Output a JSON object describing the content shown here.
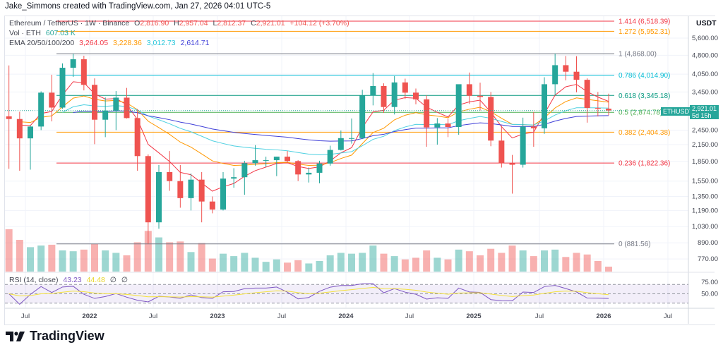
{
  "credit": "Jake_Simmons created with TradingView.com, Jan 27, 2026 04:01 UTC-5",
  "legend": {
    "symbol": "Ethereum / TetherUS · 1W · Binance",
    "o_label": "O",
    "o": "2,816.90",
    "h_label": "H",
    "h": "2,957.04",
    "l_label": "L",
    "l": "2,812.37",
    "c_label": "C",
    "c": "2,921.01",
    "change": "+104.12 (+3.70%)",
    "vol_label": "Vol · ETH",
    "vol": "607.03 K",
    "ema_label": "EMA 20/50/100/200",
    "ema20": "3,264.05",
    "ema50": "3,228.36",
    "ema100": "3,012.73",
    "ema200": "2,614.71",
    "rsi_label": "RSI (14, close)",
    "rsi": "43.23",
    "rsi_ma": "44.48",
    "rsi_na1": "∅",
    "rsi_na2": "∅"
  },
  "currency": "USDT",
  "last_price": {
    "symbol": "ETHUSDT",
    "price": "2,921.01",
    "countdown": "5d 15h"
  },
  "logo_text": "TradingView",
  "colors": {
    "up": "#26a69a",
    "down": "#ef5350",
    "ema20": "#f23645",
    "ema50": "#ff9800",
    "ema100": "#4dd0e1",
    "ema200": "#3f3fd8",
    "rsi": "#7e57c2",
    "rsi_ma": "#f5e23a"
  },
  "chart_data": {
    "type": "candlestick",
    "scale": "log",
    "ylim": [
      700,
      6900
    ],
    "grid": true,
    "y_ticks": [
      "5,600.00",
      "4,800.00",
      "4,050.00",
      "3,450.00",
      "2,450.00",
      "2,150.00",
      "1,850.00",
      "1,550.00",
      "1,350.00",
      "1,190.00",
      "1,030.00",
      "890.00",
      "770.00"
    ],
    "x_ticks": [
      "Jul",
      "2022",
      "Jul",
      "2023",
      "Jul",
      "2024",
      "Jul",
      "2025",
      "Jul",
      "2026",
      "Jul"
    ],
    "rsi_ticks": [
      "75.00",
      "50.00"
    ],
    "fib_levels": [
      {
        "ratio": "1.414",
        "price": 6518.39,
        "label": "1.414 (6,518.39)",
        "color": "#f23645"
      },
      {
        "ratio": "1.272",
        "price": 5952.31,
        "label": "1.272 (5,952.31)",
        "color": "#ff9800"
      },
      {
        "ratio": "1",
        "price": 4868.0,
        "label": "1 (4,868.00)",
        "color": "#787b86"
      },
      {
        "ratio": "0.786",
        "price": 4014.9,
        "label": "0.786 (4,014.90)",
        "color": "#00bcd4"
      },
      {
        "ratio": "0.618",
        "price": 3345.18,
        "label": "0.618 (3,345.18)",
        "color": "#089981"
      },
      {
        "ratio": "0.5",
        "price": 2874.78,
        "label": "0.5 (2,874.78)",
        "color": "#4caf50"
      },
      {
        "ratio": "0.382",
        "price": 2404.38,
        "label": "0.382 (2,404.38)",
        "color": "#ff9800"
      },
      {
        "ratio": "0.236",
        "price": 1822.36,
        "label": "0.236 (1,822.36)",
        "color": "#f23645"
      },
      {
        "ratio": "0",
        "price": 881.56,
        "label": "0 (881.56)",
        "color": "#787b86"
      }
    ],
    "candles": [
      [
        "2021-05",
        2772,
        4380,
        1730,
        2707,
        5200
      ],
      [
        "2021-06",
        2707,
        2890,
        1700,
        2275,
        3900
      ],
      [
        "2021-07",
        2275,
        2550,
        1718,
        2530,
        3000
      ],
      [
        "2021-08",
        2530,
        3470,
        2450,
        3430,
        3200
      ],
      [
        "2021-09",
        3430,
        4030,
        2650,
        3000,
        3300
      ],
      [
        "2021-10",
        3000,
        4460,
        2970,
        4290,
        2600
      ],
      [
        "2021-11",
        4290,
        4868,
        3950,
        4630,
        2500
      ],
      [
        "2021-12",
        4630,
        4780,
        3500,
        3680,
        2700
      ],
      [
        "2022-01",
        3680,
        3900,
        2160,
        2690,
        3400
      ],
      [
        "2022-02",
        2690,
        3285,
        2300,
        2920,
        2600
      ],
      [
        "2022-03",
        2920,
        3480,
        2450,
        3280,
        2300
      ],
      [
        "2022-04",
        3280,
        3580,
        2720,
        2730,
        2000
      ],
      [
        "2022-05",
        2730,
        2960,
        1700,
        1940,
        3600
      ],
      [
        "2022-06",
        1940,
        1970,
        881.56,
        1070,
        5000
      ],
      [
        "2022-07",
        1070,
        1790,
        1010,
        1680,
        4200
      ],
      [
        "2022-08",
        1680,
        2030,
        1420,
        1550,
        3600
      ],
      [
        "2022-09",
        1550,
        1790,
        1220,
        1330,
        3700
      ],
      [
        "2022-10",
        1330,
        1660,
        1190,
        1570,
        2400
      ],
      [
        "2022-11",
        1570,
        1680,
        1070,
        1290,
        3500
      ],
      [
        "2022-12",
        1290,
        1350,
        1160,
        1200,
        1600
      ],
      [
        "2023-01",
        1200,
        1680,
        1190,
        1585,
        2200
      ],
      [
        "2023-02",
        1585,
        1740,
        1460,
        1605,
        1900
      ],
      [
        "2023-03",
        1605,
        1860,
        1370,
        1820,
        2300
      ],
      [
        "2023-04",
        1820,
        2140,
        1780,
        1870,
        1700
      ],
      [
        "2023-05",
        1870,
        1930,
        1760,
        1870,
        1200
      ],
      [
        "2023-06",
        1870,
        1930,
        1620,
        1930,
        1500
      ],
      [
        "2023-07",
        1930,
        2030,
        1830,
        1855,
        1100
      ],
      [
        "2023-08",
        1855,
        1870,
        1550,
        1645,
        1400
      ],
      [
        "2023-09",
        1645,
        1750,
        1530,
        1670,
        1000
      ],
      [
        "2023-10",
        1670,
        1860,
        1520,
        1815,
        1300
      ],
      [
        "2023-11",
        1815,
        2130,
        1780,
        2050,
        2000
      ],
      [
        "2023-12",
        2050,
        2440,
        2040,
        2280,
        2300
      ],
      [
        "2024-01",
        2280,
        2720,
        2170,
        2280,
        2200
      ],
      [
        "2024-02",
        2280,
        3520,
        2260,
        3340,
        2300
      ],
      [
        "2024-03",
        3340,
        4090,
        3060,
        3640,
        3200
      ],
      [
        "2024-04",
        3640,
        3730,
        2860,
        3015,
        2200
      ],
      [
        "2024-05",
        3015,
        3980,
        2820,
        3760,
        1900
      ],
      [
        "2024-06",
        3760,
        3890,
        3240,
        3430,
        1500
      ],
      [
        "2024-07",
        3430,
        3560,
        3090,
        3230,
        1700
      ],
      [
        "2024-08",
        3230,
        3350,
        2110,
        2510,
        2600
      ],
      [
        "2024-09",
        2510,
        2730,
        2150,
        2600,
        1700
      ],
      [
        "2024-10",
        2600,
        2720,
        2300,
        2520,
        1500
      ],
      [
        "2024-11",
        2520,
        3680,
        2350,
        3700,
        2700
      ],
      [
        "2024-12",
        3700,
        4110,
        3100,
        3335,
        2500
      ],
      [
        "2025-01",
        3335,
        3750,
        2920,
        3300,
        2000
      ],
      [
        "2025-02",
        3300,
        3450,
        2120,
        2230,
        2800
      ],
      [
        "2025-03",
        2230,
        2550,
        1750,
        1820,
        2300
      ],
      [
        "2025-04",
        1820,
        1960,
        1385,
        1795,
        3200
      ],
      [
        "2025-05",
        1795,
        2740,
        1750,
        2530,
        2600
      ],
      [
        "2025-06",
        2530,
        2880,
        2110,
        2490,
        1900
      ],
      [
        "2025-07",
        2490,
        3940,
        2370,
        3700,
        2600
      ],
      [
        "2025-08",
        3700,
        4868,
        3350,
        4390,
        2700
      ],
      [
        "2025-09",
        4390,
        4770,
        3830,
        4140,
        1800
      ],
      [
        "2025-10",
        4140,
        4760,
        3440,
        3850,
        2300
      ],
      [
        "2025-11",
        3850,
        3900,
        2620,
        2990,
        2100
      ],
      [
        "2025-12",
        2990,
        3450,
        2770,
        2970,
        1300
      ],
      [
        "2026-01",
        2970,
        3400,
        2800,
        2921,
        607.03
      ]
    ]
  }
}
